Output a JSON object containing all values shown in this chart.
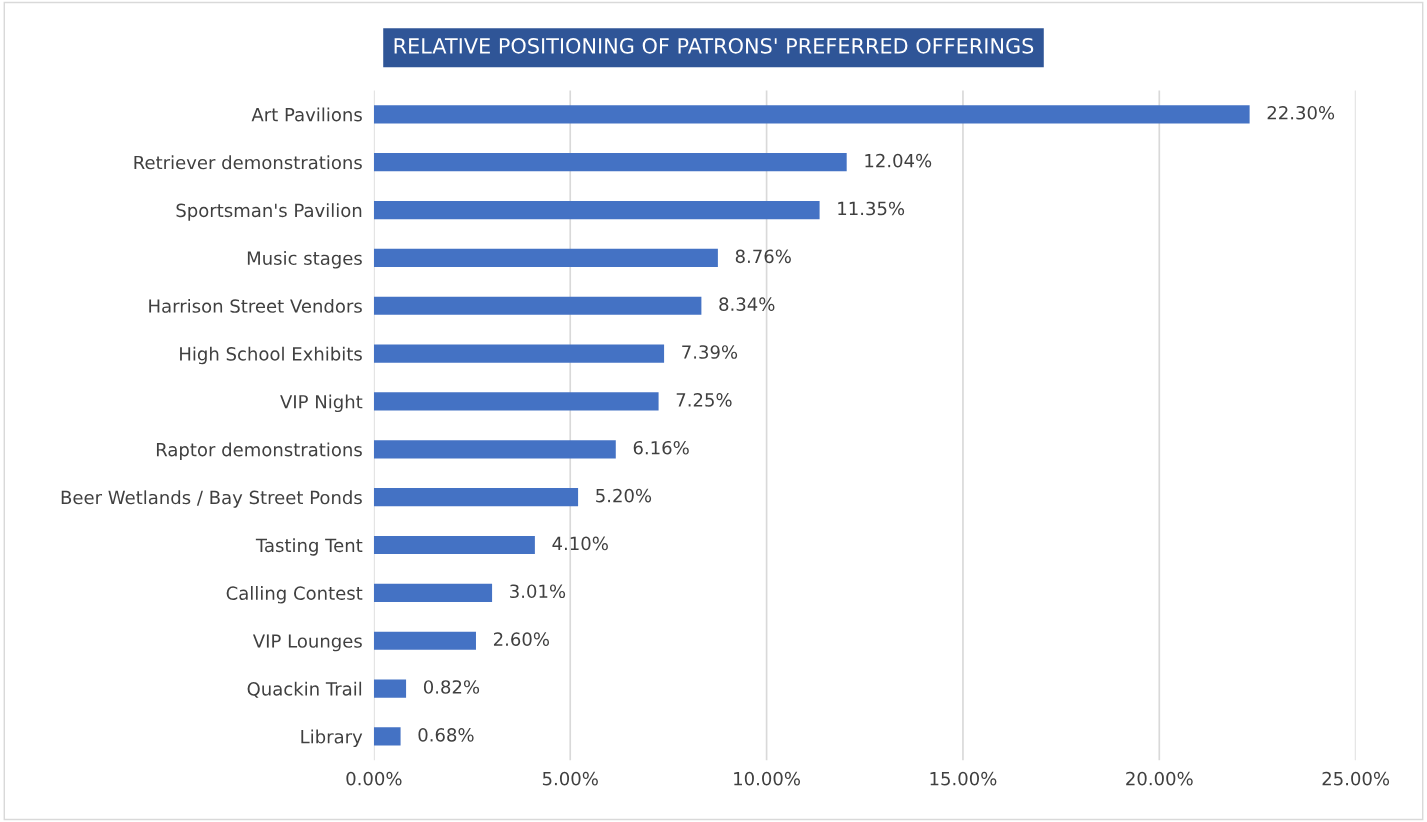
{
  "chart_data": {
    "type": "bar",
    "orientation": "horizontal",
    "title": "RELATIVE POSITIONING OF PATRONS' PREFERRED OFFERINGS",
    "categories": [
      "Art Pavilions",
      "Retriever demonstrations",
      "Sportsman's Pavilion",
      "Music stages",
      "Harrison Street Vendors",
      "High School Exhibits",
      "VIP Night",
      "Raptor demonstrations",
      "Beer Wetlands / Bay Street Ponds",
      "Tasting Tent",
      "Calling Contest",
      "VIP Lounges",
      "Quackin Trail",
      "Library"
    ],
    "values": [
      22.3,
      12.04,
      11.35,
      8.76,
      8.34,
      7.39,
      7.25,
      6.16,
      5.2,
      4.1,
      3.01,
      2.6,
      0.82,
      0.68
    ],
    "value_labels": [
      "22.30%",
      "12.04%",
      "11.35%",
      "8.76%",
      "8.34%",
      "7.39%",
      "7.25%",
      "6.16%",
      "5.20%",
      "4.10%",
      "3.01%",
      "2.60%",
      "0.82%",
      "0.68%"
    ],
    "color": "#4472c4",
    "xlim": [
      0,
      25
    ],
    "xticks": [
      {
        "value": 0,
        "label": "0.00%"
      },
      {
        "value": 5,
        "label": "5.00%"
      },
      {
        "value": 10,
        "label": "10.00%"
      },
      {
        "value": 15,
        "label": "15.00%"
      },
      {
        "value": 20,
        "label": "20.00%"
      },
      {
        "value": 25,
        "label": "25.00%"
      }
    ],
    "grid": "x",
    "legend": false
  }
}
